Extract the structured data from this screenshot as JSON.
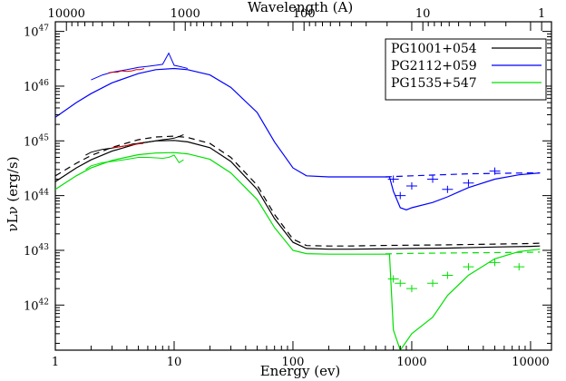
{
  "chart_data": {
    "type": "line",
    "xlabel": "Energy (ev)",
    "x2label": "Wavelength (A)",
    "ylabel": "νLν (erg/s)",
    "x_scale": "log",
    "y_scale": "log",
    "xlim": [
      1,
      15000
    ],
    "ylim": [
      1.5e+41,
      1.5e+47
    ],
    "x_ticks": [
      {
        "value": 1,
        "label": "1"
      },
      {
        "value": 10,
        "label": "10"
      },
      {
        "value": 100,
        "label": "100"
      },
      {
        "value": 1000,
        "label": "1000"
      },
      {
        "value": 10000,
        "label": "10000"
      }
    ],
    "x2_ticks": [
      {
        "value": 10000,
        "label": "10000"
      },
      {
        "value": 1000,
        "label": "1000"
      },
      {
        "value": 100,
        "label": "100"
      },
      {
        "value": 10,
        "label": "10"
      },
      {
        "value": 1,
        "label": "1"
      }
    ],
    "y_ticks": [
      {
        "value": 1e+42,
        "base": "10",
        "exp": "42"
      },
      {
        "value": 1e+43,
        "base": "10",
        "exp": "43"
      },
      {
        "value": 1e+44,
        "base": "10",
        "exp": "44"
      },
      {
        "value": 1e+45,
        "base": "10",
        "exp": "45"
      },
      {
        "value": 1e+46,
        "base": "10",
        "exp": "46"
      },
      {
        "value": 1e+47,
        "base": "10",
        "exp": "47"
      }
    ],
    "legend_position": "top-right",
    "series": [
      {
        "name": "PG1001+054",
        "color": "#000000",
        "model": {
          "x": [
            1,
            1.5,
            2,
            3,
            5,
            7,
            10,
            13,
            20,
            30,
            50,
            70,
            100,
            130,
            200,
            300,
            500,
            700,
            1000,
            2000,
            5000,
            10000,
            12000
          ],
          "y": [
            1.8e+44,
            3.2e+44,
            4.5e+44,
            6.5e+44,
            9e+44,
            1e+45,
            1.02e+45,
            9.6e+44,
            7.5e+44,
            4.2e+44,
            1.3e+44,
            3.8e+43,
            1.4e+43,
            1.08e+43,
            1.05e+43,
            1.05e+43,
            1.06e+43,
            1.07e+43,
            1.08e+43,
            1.1e+43,
            1.15e+43,
            1.18e+43,
            1.2e+43
          ]
        },
        "model_dashed": {
          "x": [
            1,
            1.5,
            2,
            3,
            5,
            7,
            10,
            13,
            20,
            30,
            50,
            70,
            100,
            130,
            200,
            300,
            500,
            1000,
            2000,
            5000,
            10000,
            12000
          ],
          "y": [
            2.3e+44,
            3.9e+44,
            5.4e+44,
            7.6e+44,
            1.05e+45,
            1.18e+45,
            1.22e+45,
            1.15e+45,
            9e+44,
            5e+44,
            1.55e+44,
            4.5e+43,
            1.6e+43,
            1.22e+43,
            1.2e+43,
            1.2e+43,
            1.22e+43,
            1.24e+43,
            1.26e+43,
            1.3e+43,
            1.33e+43,
            1.35e+43
          ]
        },
        "data": {
          "x": [
            1.8,
            2,
            2.5,
            3,
            3.5,
            4,
            4.5,
            5,
            5.5,
            6,
            7,
            8,
            9,
            10,
            11,
            12
          ],
          "y": [
            5.5e+44,
            6.2e+44,
            7e+44,
            7.4e+44,
            7.8e+44,
            8.2e+44,
            8.8e+44,
            9e+44,
            9.3e+44,
            9.5e+44,
            1e+45,
            1.05e+45,
            1.08e+45,
            1.12e+45,
            1.2e+45,
            1.3e+45
          ]
        }
      },
      {
        "name": "PG2112+059",
        "color": "#0000ff",
        "model": {
          "x": [
            1,
            1.5,
            2,
            3,
            5,
            7,
            10,
            13,
            20,
            30,
            50,
            70,
            100,
            130,
            200,
            300,
            500,
            650,
            700,
            800,
            900,
            1000,
            1500,
            2000,
            3000,
            5000,
            8000,
            12000
          ],
          "y": [
            2.7e+45,
            5e+45,
            7.3e+45,
            1.15e+46,
            1.7e+46,
            2e+46,
            2.1e+46,
            2e+46,
            1.6e+46,
            9.5e+45,
            3.3e+45,
            9.5e+44,
            3.2e+44,
            2.3e+44,
            2.2e+44,
            2.2e+44,
            2.2e+44,
            2.2e+44,
            1.2e+44,
            6e+43,
            5.5e+43,
            6e+43,
            7.5e+43,
            9.5e+43,
            1.4e+44,
            2e+44,
            2.4e+44,
            2.6e+44
          ]
        },
        "model_dashed": {
          "x": [
            600,
            1000,
            3000,
            10000,
            12000
          ],
          "y": [
            2.2e+44,
            2.3e+44,
            2.5e+44,
            2.6e+44,
            2.6e+44
          ]
        },
        "data": {
          "x": [
            2,
            2.5,
            3,
            3.5,
            4,
            4.5,
            5,
            6,
            7,
            8,
            9,
            10,
            11,
            12,
            13
          ],
          "y": [
            1.3e+46,
            1.6e+46,
            1.8e+46,
            1.9e+46,
            2e+46,
            2.1e+46,
            2.2e+46,
            2.3e+46,
            2.4e+46,
            2.5e+46,
            4e+46,
            2.4e+46,
            2.3e+46,
            2.2e+46,
            2.1e+46
          ]
        },
        "xray_points": {
          "x": [
            700,
            800,
            1000,
            1500,
            2000,
            3000,
            5000
          ],
          "y": [
            2e+44,
            1e+44,
            1.5e+44,
            2e+44,
            1.3e+44,
            1.7e+44,
            2.8e+44
          ]
        }
      },
      {
        "name": "PG1535+547",
        "color": "#00e000",
        "model": {
          "x": [
            1,
            1.5,
            2,
            3,
            5,
            7,
            10,
            13,
            20,
            30,
            50,
            70,
            100,
            130,
            200,
            300,
            500,
            650,
            700,
            800,
            1000,
            1500,
            2000,
            3000,
            5000,
            8000,
            12000
          ],
          "y": [
            1.3e+44,
            2.3e+44,
            3.2e+44,
            4.4e+44,
            5.6e+44,
            6e+44,
            6.1e+44,
            5.8e+44,
            4.6e+44,
            2.6e+44,
            8.5e+43,
            2.6e+43,
            1e+43,
            8.7e+42,
            8.5e+42,
            8.5e+42,
            8.5e+42,
            8.5e+42,
            3.5e+41,
            1.5e+41,
            3e+41,
            6e+41,
            1.5e+42,
            3.5e+42,
            7e+42,
            9.5e+42,
            1.05e+43
          ]
        },
        "model_dashed": {
          "x": [
            600,
            1000,
            3000,
            10000,
            12000
          ],
          "y": [
            8.6e+42,
            8.8e+42,
            9e+42,
            9.2e+42,
            9.3e+42
          ]
        },
        "data": {
          "x": [
            1.8,
            2,
            2.5,
            3,
            3.5,
            4,
            4.5,
            5,
            6,
            7,
            8,
            9,
            10,
            11,
            12
          ],
          "y": [
            3e+44,
            3.5e+44,
            4e+44,
            4.2e+44,
            4.4e+44,
            4.6e+44,
            4.8e+44,
            5e+44,
            5e+44,
            4.9e+44,
            4.8e+44,
            5e+44,
            5.5e+44,
            4e+44,
            4.5e+44
          ]
        },
        "xray_points": {
          "x": [
            700,
            800,
            1000,
            1500,
            2000,
            3000,
            5000,
            8000
          ],
          "y": [
            3e+42,
            2.5e+42,
            2e+42,
            2.5e+42,
            3.5e+42,
            5e+42,
            6e+42,
            5e+42
          ]
        }
      },
      {
        "name": "",
        "color": "#dd0000",
        "data": {
          "x": [
            2.8,
            3,
            3.3,
            3.6,
            4,
            4.4,
            4.8,
            5.2,
            5.6
          ],
          "y": [
            1.75e+46,
            1.8e+46,
            1.8e+46,
            1.9e+46,
            1.85e+46,
            1.9e+46,
            2e+46,
            2e+46,
            2.1e+46
          ]
        }
      },
      {
        "name": "",
        "color": "#dd0000",
        "data": {
          "x": [
            3,
            3.5,
            4,
            4.5,
            5,
            5.5
          ],
          "y": [
            7.5e+44,
            7.8e+44,
            8.2e+44,
            8.5e+44,
            8.8e+44,
            9e+44
          ]
        }
      }
    ],
    "legend": [
      {
        "name": "PG1001+054",
        "color": "#000000"
      },
      {
        "name": "PG2112+059",
        "color": "#0000ff"
      },
      {
        "name": "PG1535+547",
        "color": "#00e000"
      }
    ]
  }
}
